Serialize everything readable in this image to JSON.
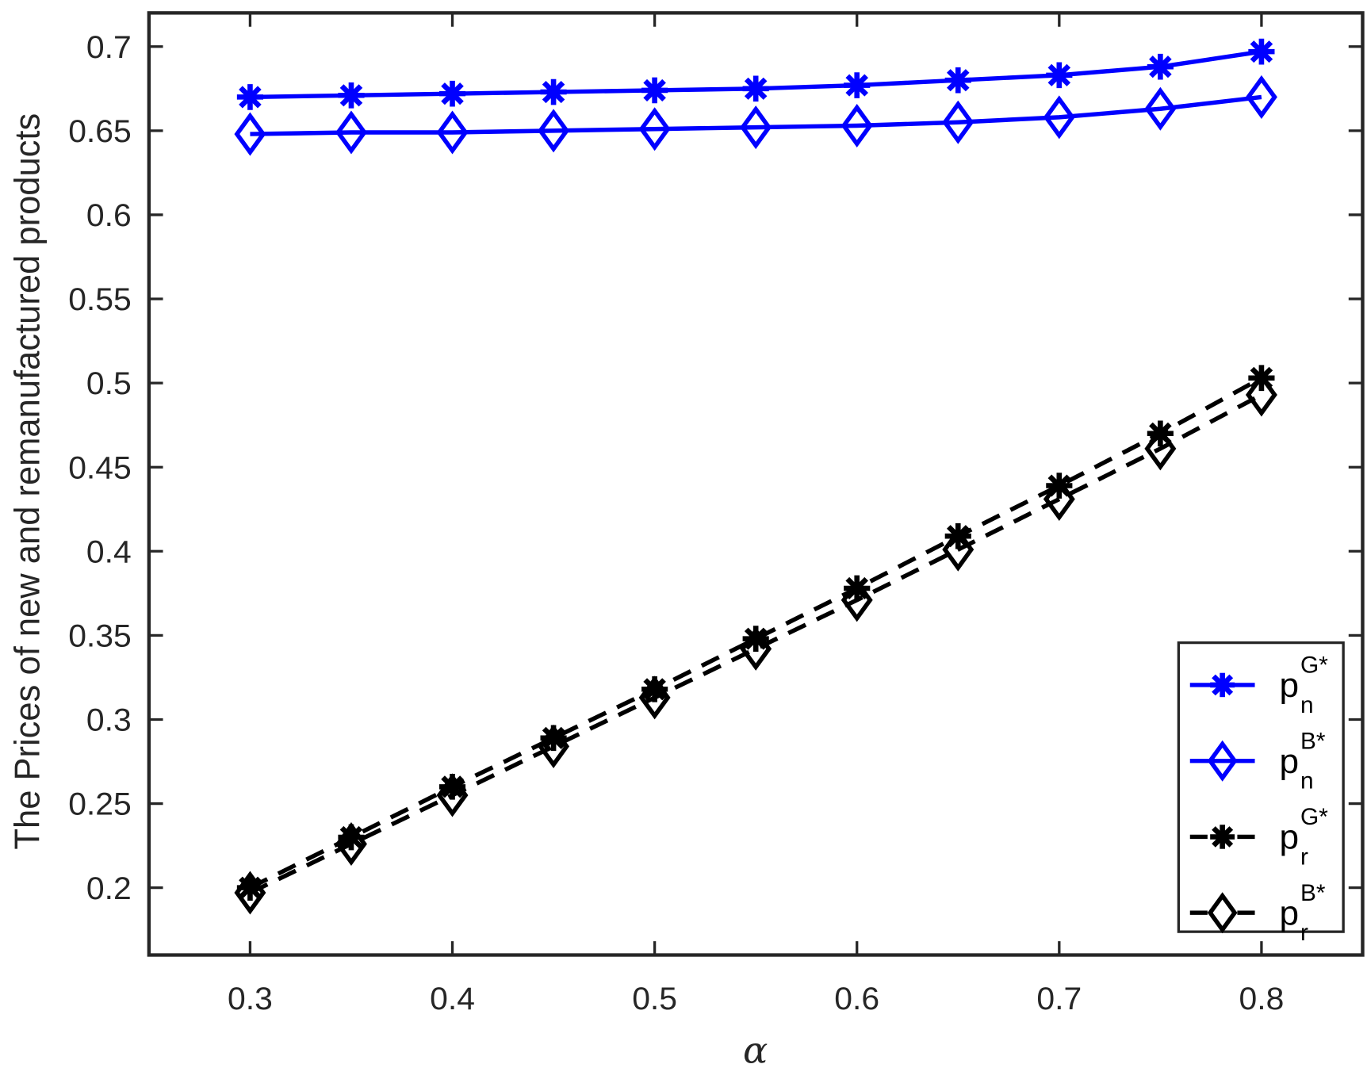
{
  "chart_data": {
    "type": "line",
    "title": "",
    "xlabel": "α",
    "ylabel": "The Prices of new and remanufactured products",
    "xlim": [
      0.25,
      0.85
    ],
    "ylim": [
      0.16,
      0.72
    ],
    "grid": false,
    "legend_position": "lower right (inside axes)",
    "x": [
      0.3,
      0.35,
      0.4,
      0.45,
      0.5,
      0.55,
      0.6,
      0.65,
      0.7,
      0.75,
      0.8
    ],
    "x_ticks": [
      0.3,
      0.4,
      0.5,
      0.6,
      0.7,
      0.8
    ],
    "x_tick_labels": [
      "0.3",
      "0.4",
      "0.5",
      "0.6",
      "0.7",
      "0.8"
    ],
    "y_ticks": [
      0.2,
      0.25,
      0.3,
      0.35,
      0.4,
      0.45,
      0.5,
      0.55,
      0.6,
      0.65,
      0.7
    ],
    "y_tick_labels": [
      "0.2",
      "0.25",
      "0.3",
      "0.35",
      "0.4",
      "0.45",
      "0.5",
      "0.55",
      "0.6",
      "0.65",
      "0.7"
    ],
    "series": [
      {
        "name": "p_n^{G*}",
        "label_base": "p",
        "label_sub": "n",
        "label_sup": "G*",
        "color": "#0000ff",
        "line_style": "solid",
        "marker": "asterisk",
        "values": [
          0.67,
          0.671,
          0.672,
          0.673,
          0.674,
          0.675,
          0.677,
          0.68,
          0.683,
          0.688,
          0.697
        ]
      },
      {
        "name": "p_n^{B*}",
        "label_base": "p",
        "label_sub": "n",
        "label_sup": "B*",
        "color": "#0000ff",
        "line_style": "solid",
        "marker": "diamond",
        "values": [
          0.648,
          0.649,
          0.649,
          0.65,
          0.651,
          0.652,
          0.653,
          0.655,
          0.658,
          0.663,
          0.67
        ]
      },
      {
        "name": "p_r^{G*}",
        "label_base": "p",
        "label_sub": "r",
        "label_sup": "G*",
        "color": "#000000",
        "line_style": "dashed",
        "marker": "asterisk",
        "values": [
          0.2,
          0.23,
          0.26,
          0.289,
          0.318,
          0.348,
          0.378,
          0.409,
          0.439,
          0.47,
          0.503
        ]
      },
      {
        "name": "p_r^{B*}",
        "label_base": "p",
        "label_sub": "r",
        "label_sup": "B*",
        "color": "#000000",
        "line_style": "dashed",
        "marker": "diamond",
        "values": [
          0.197,
          0.226,
          0.255,
          0.284,
          0.313,
          0.342,
          0.371,
          0.401,
          0.431,
          0.461,
          0.493
        ]
      }
    ]
  }
}
